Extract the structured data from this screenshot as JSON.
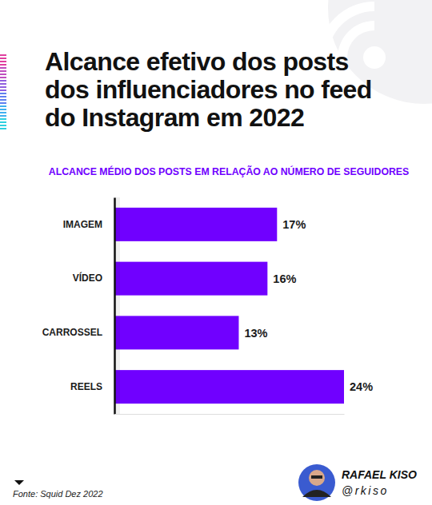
{
  "chart_data": {
    "type": "bar",
    "orientation": "horizontal",
    "title": [
      "Alcance efetivo dos posts",
      "dos influenciadores no feed",
      "do Instagram em 2022"
    ],
    "subtitle": "ALCANCE MÉDIO DOS POSTS EM RELAÇÃO AO NÚMERO DE SEGUIDORES",
    "categories": [
      "IMAGEM",
      "VÍDEO",
      "CARROSSEL",
      "REELS"
    ],
    "values": [
      17,
      16,
      13,
      24
    ],
    "value_labels": [
      "17%",
      "16%",
      "13%",
      "24%"
    ],
    "data_labels": true,
    "color": "#7000ff",
    "xlim": [
      0,
      24
    ],
    "tick_labels": "y",
    "grid": false,
    "annotations": [
      "Fonte: Squid Dez 2022",
      "RAFAEL KISO",
      "@rkiso"
    ]
  }
}
